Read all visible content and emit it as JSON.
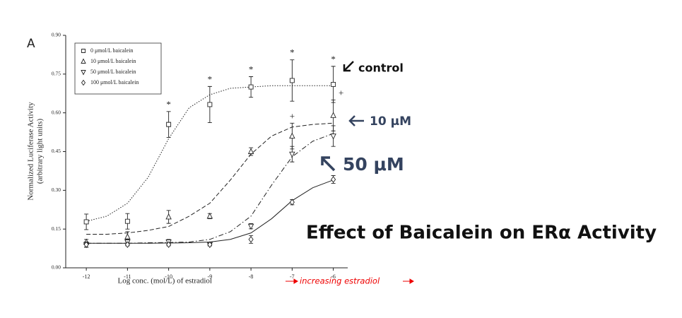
{
  "chart_data": {
    "type": "line",
    "panel_label": "A",
    "title": "Effect of Baicalein on ERα Activity",
    "xlabel": "Log conc. (mol/L) of estradiol",
    "xlabel_note": "increasing estradiol",
    "ylabel": [
      "Normalized Luciferase Activity",
      "(arbitrary light units)"
    ],
    "xlim": [
      -12.5,
      -5.65
    ],
    "ylim": [
      0,
      0.9
    ],
    "xticks": [
      -12,
      -11,
      -10,
      -9,
      -8,
      -7,
      -6
    ],
    "yticks": [
      {
        "value": 0,
        "label": "0.00"
      },
      {
        "value": 0.15,
        "label": "0.15"
      },
      {
        "value": 0.3,
        "label": "0.30"
      },
      {
        "value": 0.45,
        "label": "0.45"
      },
      {
        "value": 0.6,
        "label": "0.60"
      },
      {
        "value": 0.75,
        "label": "0.75"
      },
      {
        "value": 0.9,
        "label": "0.90"
      }
    ],
    "x": [
      -12,
      -11,
      -10,
      -9,
      -8,
      -7,
      -6
    ],
    "fit_x": [
      -12,
      -11.5,
      -11,
      -10.5,
      -10,
      -9.5,
      -9,
      -8.5,
      -8,
      -7.5,
      -7,
      -6.5,
      -6
    ],
    "legend": "upper left",
    "series": [
      {
        "name": "0 μmol/L baicalein",
        "marker": "square",
        "line_style": "dotted",
        "color": "#222222",
        "values": [
          0.178,
          0.18,
          0.555,
          0.632,
          0.7,
          0.725,
          0.71
        ],
        "errors": [
          0.03,
          0.03,
          0.05,
          0.07,
          0.04,
          0.08,
          0.07
        ],
        "fit": [
          0.18,
          0.2,
          0.25,
          0.35,
          0.5,
          0.62,
          0.67,
          0.695,
          0.7,
          0.705,
          0.705,
          0.705,
          0.705
        ]
      },
      {
        "name": "10 μmol/L baicalein",
        "marker": "triangle-up",
        "line_style": "dashed",
        "color": "#222222",
        "values": [
          0.1,
          0.12,
          0.197,
          0.2,
          0.45,
          0.51,
          0.59
        ],
        "errors": [
          0.01,
          0.02,
          0.025,
          0.01,
          0.015,
          0.05,
          0.06
        ],
        "fit": [
          0.13,
          0.13,
          0.135,
          0.145,
          0.16,
          0.2,
          0.25,
          0.34,
          0.44,
          0.51,
          0.545,
          0.555,
          0.56
        ]
      },
      {
        "name": "50 μmol/L baicalein",
        "marker": "triangle-down",
        "line_style": "dashdot",
        "color": "#222222",
        "values": [
          0.09,
          0.1,
          0.1,
          0.09,
          0.161,
          0.44,
          0.51
        ],
        "errors": [
          0.01,
          0.01,
          0.01,
          0.005,
          0.01,
          0.03,
          0.04
        ],
        "fit": [
          0.095,
          0.095,
          0.095,
          0.097,
          0.098,
          0.1,
          0.11,
          0.14,
          0.2,
          0.32,
          0.43,
          0.49,
          0.52
        ]
      },
      {
        "name": "100 μmol/L baicalein",
        "marker": "diamond",
        "line_style": "solid",
        "color": "#222222",
        "values": [
          0.09,
          0.09,
          0.09,
          0.09,
          0.11,
          0.254,
          0.342
        ],
        "errors": [
          0.01,
          0.005,
          0.005,
          0.005,
          0.015,
          0.01,
          0.015
        ],
        "fit": [
          0.095,
          0.095,
          0.095,
          0.095,
          0.096,
          0.097,
          0.1,
          0.11,
          0.135,
          0.19,
          0.26,
          0.31,
          0.34
        ]
      }
    ],
    "significance": [
      {
        "series": 0,
        "x": -10,
        "label": "*"
      },
      {
        "series": 0,
        "x": -9,
        "label": "*"
      },
      {
        "series": 0,
        "x": -8,
        "label": "*"
      },
      {
        "series": 0,
        "x": -7,
        "label": "*"
      },
      {
        "series": 0,
        "x": -6,
        "label": "*"
      },
      {
        "series": 1,
        "x": -7,
        "label": "+"
      },
      {
        "series": 1,
        "x": -6,
        "label": "+"
      }
    ],
    "callouts": [
      "control",
      "10 μM",
      "50 μM"
    ]
  }
}
